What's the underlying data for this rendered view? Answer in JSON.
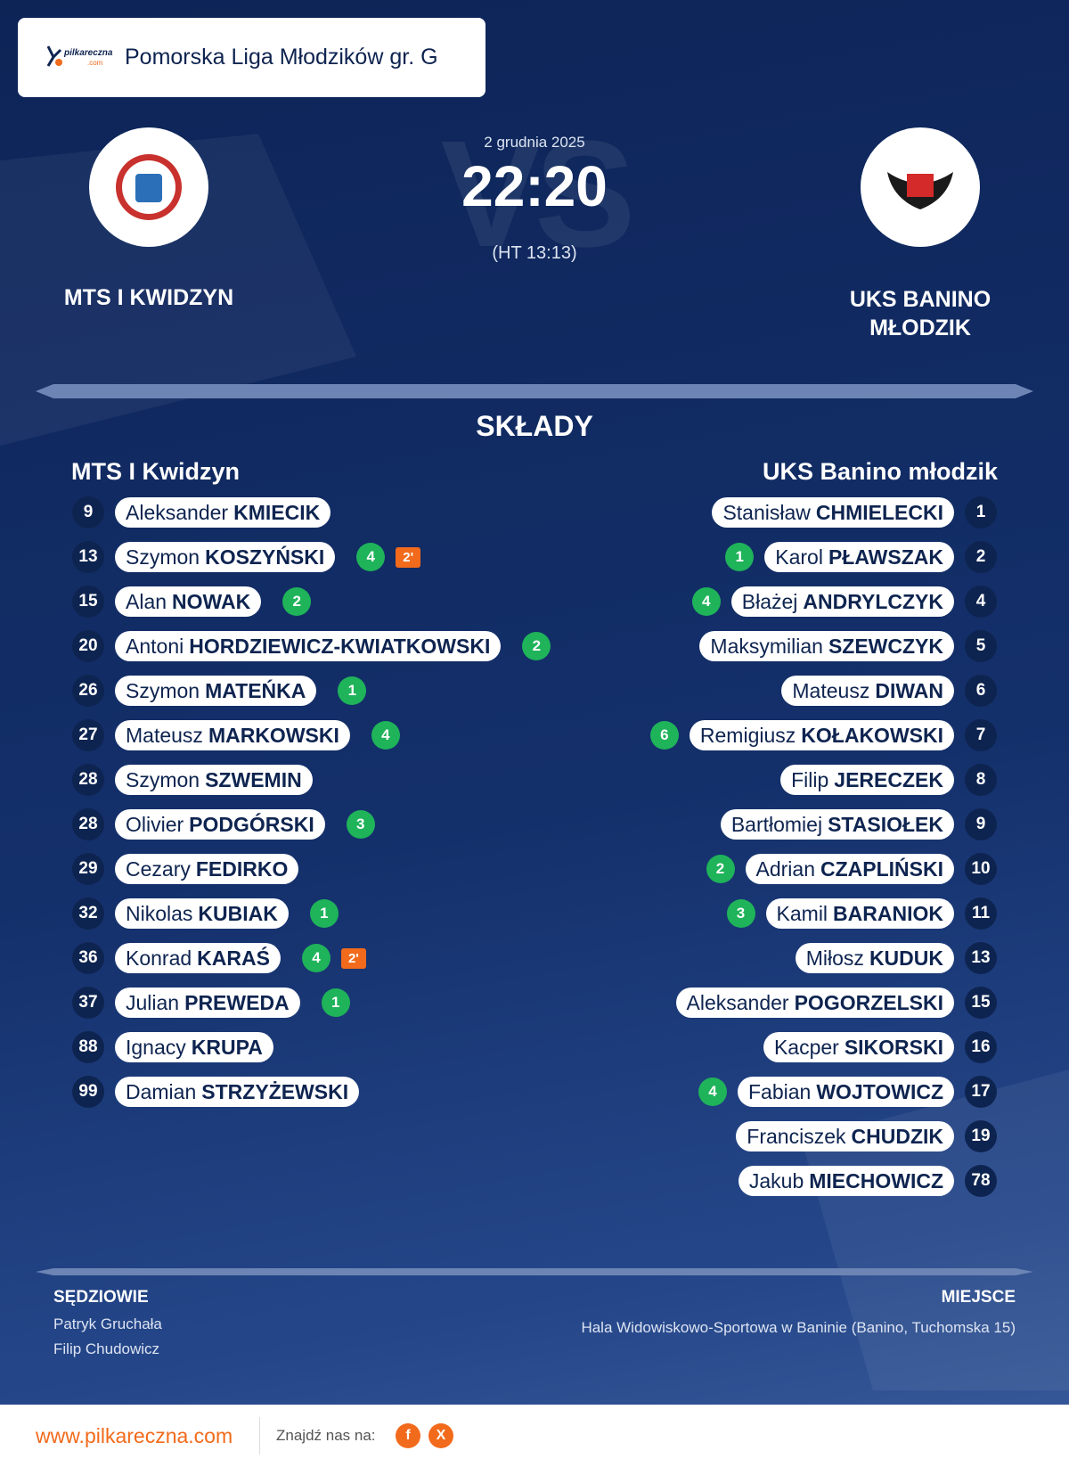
{
  "header": {
    "logo_text": "pilkareczna",
    "logo_suffix": ".com",
    "league": "Pomorska Liga Młodzików gr. G"
  },
  "match": {
    "watermark": "VS",
    "date": "2 grudnia 2025",
    "score": "22:20",
    "halftime": "(HT 13:13)"
  },
  "home": {
    "name": "MTS I KWIDZYN"
  },
  "away": {
    "name": "UKS BANINO MŁODZIK"
  },
  "lineups": {
    "title": "SKŁADY",
    "home": {
      "team": "MTS I Kwidzyn",
      "players": [
        {
          "number": 9,
          "first": "Aleksander",
          "last": "KMIECIK"
        },
        {
          "number": 13,
          "first": "Szymon",
          "last": "KOSZYŃSKI",
          "goals": 4,
          "penalty": "2'"
        },
        {
          "number": 15,
          "first": "Alan",
          "last": "NOWAK",
          "goals": 2
        },
        {
          "number": 20,
          "first": "Antoni",
          "last": "HORDZIEWICZ-KWIATKOWSKI",
          "goals": 2
        },
        {
          "number": 26,
          "first": "Szymon",
          "last": "MATEŃKA",
          "goals": 1
        },
        {
          "number": 27,
          "first": "Mateusz",
          "last": "MARKOWSKI",
          "goals": 4
        },
        {
          "number": 28,
          "first": "Szymon",
          "last": "SZWEMIN"
        },
        {
          "number": 28,
          "first": "Olivier",
          "last": "PODGÓRSKI",
          "goals": 3
        },
        {
          "number": 29,
          "first": "Cezary",
          "last": "FEDIRKO"
        },
        {
          "number": 32,
          "first": "Nikolas",
          "last": "KUBIAK",
          "goals": 1
        },
        {
          "number": 36,
          "first": "Konrad",
          "last": "KARAŚ",
          "goals": 4,
          "penalty": "2'"
        },
        {
          "number": 37,
          "first": "Julian",
          "last": "PREWEDA",
          "goals": 1
        },
        {
          "number": 88,
          "first": "Ignacy",
          "last": "KRUPA"
        },
        {
          "number": 99,
          "first": "Damian",
          "last": "STRZYŻEWSKI"
        }
      ]
    },
    "away": {
      "team": "UKS Banino młodzik",
      "players": [
        {
          "number": 1,
          "first": "Stanisław",
          "last": "CHMIELECKI"
        },
        {
          "number": 2,
          "first": "Karol",
          "last": "PŁAWSZAK",
          "goals": 1
        },
        {
          "number": 4,
          "first": "Błażej",
          "last": "ANDRYLCZYK",
          "goals": 4
        },
        {
          "number": 5,
          "first": "Maksymilian",
          "last": "SZEWCZYK"
        },
        {
          "number": 6,
          "first": "Mateusz",
          "last": "DIWAN"
        },
        {
          "number": 7,
          "first": "Remigiusz",
          "last": "KOŁAKOWSKI",
          "goals": 6
        },
        {
          "number": 8,
          "first": "Filip",
          "last": "JERECZEK"
        },
        {
          "number": 9,
          "first": "Bartłomiej",
          "last": "STASIOŁEK"
        },
        {
          "number": 10,
          "first": "Adrian",
          "last": "CZAPLIŃSKI",
          "goals": 2
        },
        {
          "number": 11,
          "first": "Kamil",
          "last": "BARANIOK",
          "goals": 3
        },
        {
          "number": 13,
          "first": "Miłosz",
          "last": "KUDUK"
        },
        {
          "number": 15,
          "first": "Aleksander",
          "last": "POGORZELSKI"
        },
        {
          "number": 16,
          "first": "Kacper",
          "last": "SIKORSKI"
        },
        {
          "number": 17,
          "first": "Fabian",
          "last": "WOJTOWICZ",
          "goals": 4
        },
        {
          "number": 19,
          "first": "Franciszek",
          "last": "CHUDZIK"
        },
        {
          "number": 78,
          "first": "Jakub",
          "last": "MIECHOWICZ"
        }
      ]
    }
  },
  "referees": {
    "title": "SĘDZIOWIE",
    "names": [
      "Patryk Gruchała",
      "Filip Chudowicz"
    ]
  },
  "venue": {
    "title": "MIEJSCE",
    "text": "Hala Widowiskowo-Sportowa w Baninie (Banino, Tuchomska 15)"
  },
  "footer": {
    "site": "www.pilkareczna.com",
    "follow": "Znajdź nas na:",
    "icons": [
      "f",
      "X"
    ]
  }
}
